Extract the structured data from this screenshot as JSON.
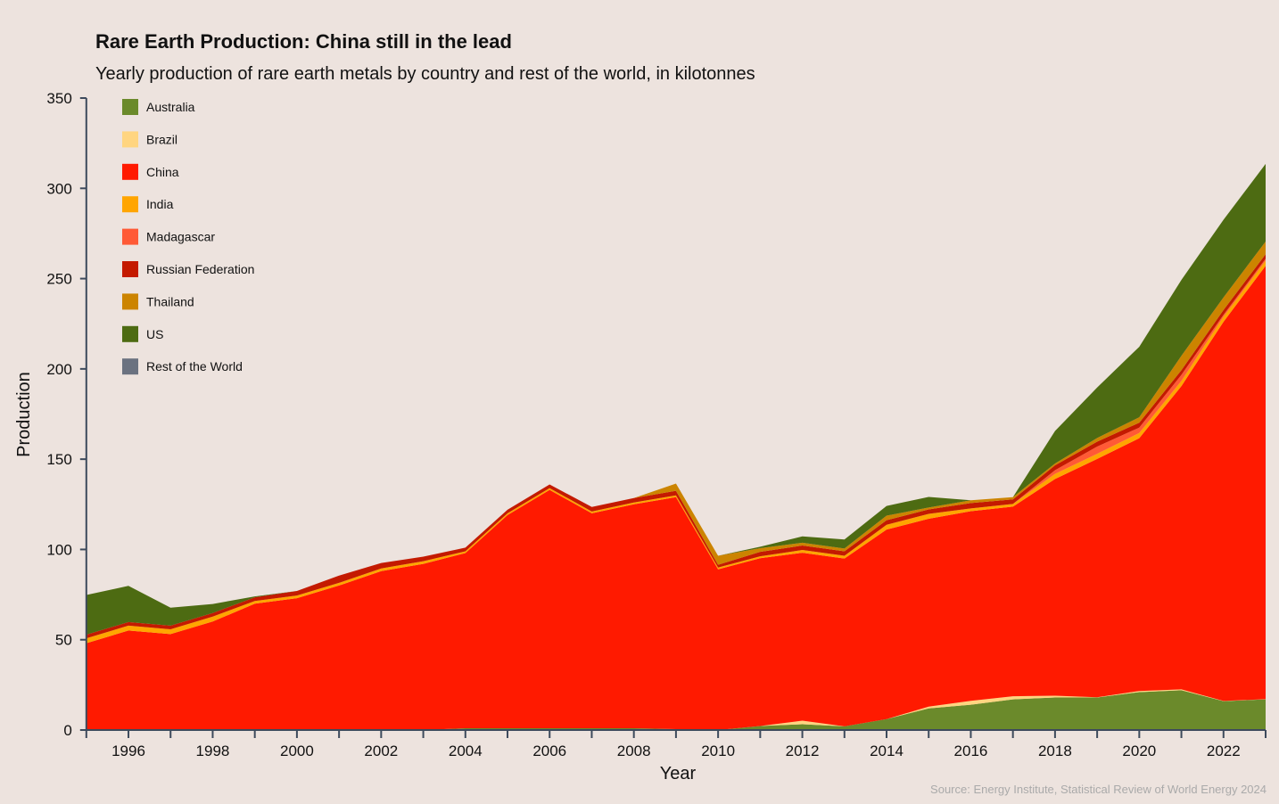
{
  "chart_data": {
    "type": "area",
    "stacked": true,
    "title": "Rare Earth Production: China still in the lead",
    "subtitle": "Yearly production of rare earth metals by country and rest of the world, in kilotonnes",
    "xlabel": "Year",
    "ylabel": "Production",
    "source": "Source: Energy Institute, Statistical Review of World Energy 2024",
    "xlim": [
      1995,
      2023
    ],
    "ylim": [
      0,
      350
    ],
    "xticks": [
      1996,
      1998,
      2000,
      2002,
      2004,
      2006,
      2008,
      2010,
      2012,
      2014,
      2016,
      2018,
      2020,
      2022
    ],
    "yticks": [
      0,
      50,
      100,
      150,
      200,
      250,
      300,
      350
    ],
    "legend_position": "top-left",
    "grid": false,
    "x": [
      1995,
      1996,
      1997,
      1998,
      1999,
      2000,
      2001,
      2002,
      2003,
      2004,
      2005,
      2006,
      2007,
      2008,
      2009,
      2010,
      2011,
      2012,
      2013,
      2014,
      2015,
      2016,
      2017,
      2018,
      2019,
      2020,
      2021,
      2022,
      2023
    ],
    "series": [
      {
        "name": "Australia",
        "color": "#6b8a2b",
        "values": [
          0,
          0,
          0,
          0,
          0,
          0,
          0,
          0,
          0,
          1,
          1,
          1,
          1,
          1,
          0.5,
          0,
          2.2,
          3.2,
          2,
          6,
          12,
          14,
          17,
          18,
          18,
          21,
          22,
          16,
          17
        ]
      },
      {
        "name": "Brazil",
        "color": "#ffd580",
        "values": [
          0.1,
          0.1,
          0.1,
          0.1,
          0,
          0,
          0,
          0,
          0,
          0,
          0,
          0,
          0,
          0,
          0,
          0,
          0,
          2,
          0,
          0,
          1,
          2.2,
          1.7,
          1,
          0.1,
          0.6,
          0.5,
          0.1,
          0.1
        ]
      },
      {
        "name": "China",
        "color": "#ff1a00",
        "values": [
          48,
          55,
          53,
          60,
          70,
          73,
          80,
          88,
          92,
          97,
          118,
          132,
          119,
          124,
          128.5,
          89,
          93,
          93,
          93,
          105,
          104,
          105,
          105,
          120,
          132,
          140,
          168,
          210,
          240
        ]
      },
      {
        "name": "India",
        "color": "#ffa500",
        "values": [
          2.7,
          2.7,
          2.7,
          2.7,
          1.5,
          1.5,
          1.5,
          1.5,
          1.5,
          1,
          1,
          1,
          1,
          1,
          1,
          1,
          1,
          1.5,
          1.5,
          2.7,
          2.7,
          1.5,
          1.5,
          2.9,
          2.9,
          2.9,
          2.9,
          2.9,
          2.9
        ]
      },
      {
        "name": "Madagascar",
        "color": "#ff5a36",
        "values": [
          0,
          0,
          0,
          0,
          0,
          0,
          0,
          0,
          0,
          0,
          0,
          0,
          0,
          0,
          0,
          0,
          0,
          0,
          0,
          0,
          0,
          0,
          0,
          2,
          4,
          3,
          3.3,
          1,
          1
        ]
      },
      {
        "name": "Russian Federation",
        "color": "#c41a00",
        "values": [
          2,
          2,
          2,
          2,
          2,
          2.5,
          4,
          3,
          2.5,
          2,
          2,
          2,
          2.5,
          2.5,
          2.5,
          1.5,
          2.5,
          2.5,
          2.5,
          2.5,
          2.5,
          3,
          2.5,
          2.7,
          2.7,
          2.7,
          2.6,
          2.6,
          2.5
        ]
      },
      {
        "name": "Thailand",
        "color": "#cc8400",
        "values": [
          0,
          0,
          0,
          0,
          0,
          0,
          0,
          0,
          0,
          0,
          0,
          0,
          0,
          0,
          4,
          5,
          2,
          1.5,
          1.5,
          2.5,
          1,
          1.5,
          1.3,
          1,
          2,
          3,
          8,
          7,
          7
        ]
      },
      {
        "name": "US",
        "color": "#4d6b12",
        "values": [
          22,
          20,
          10,
          5,
          0.5,
          0,
          0,
          0,
          0,
          0,
          0,
          0,
          0,
          0,
          0,
          0,
          0.8,
          3.5,
          5,
          5.4,
          5.9,
          0,
          0,
          18,
          28,
          39,
          42,
          43,
          43
        ]
      },
      {
        "name": "Rest of the World",
        "color": "#6b7280",
        "values": [
          0,
          0,
          0,
          0,
          0,
          0,
          0,
          0,
          0,
          0,
          0,
          0,
          0,
          0,
          0,
          0,
          0,
          0,
          0,
          0,
          0,
          0,
          0,
          0,
          0,
          0,
          0,
          0,
          0
        ]
      }
    ]
  }
}
